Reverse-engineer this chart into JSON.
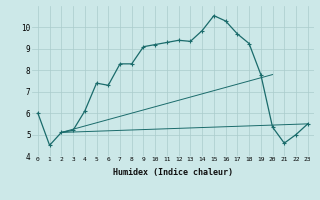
{
  "xlabel": "Humidex (Indice chaleur)",
  "bg_color": "#cce8e8",
  "grid_color": "#aacccc",
  "line_color": "#1a6b6b",
  "xlim": [
    -0.5,
    23.5
  ],
  "ylim": [
    4,
    11
  ],
  "yticks": [
    4,
    5,
    6,
    7,
    8,
    9,
    10
  ],
  "xticks": [
    0,
    1,
    2,
    3,
    4,
    5,
    6,
    7,
    8,
    9,
    10,
    11,
    12,
    13,
    14,
    15,
    16,
    17,
    18,
    19,
    20,
    21,
    22,
    23
  ],
  "main_x": [
    0,
    1,
    2,
    3,
    4,
    5,
    6,
    7,
    8,
    9,
    10,
    11,
    12,
    13,
    14,
    15,
    16,
    17,
    18,
    19,
    20,
    21,
    22,
    23
  ],
  "main_y": [
    6.0,
    4.5,
    5.1,
    5.2,
    6.1,
    7.4,
    7.3,
    8.3,
    8.3,
    9.1,
    9.2,
    9.3,
    9.4,
    9.35,
    9.85,
    10.55,
    10.3,
    9.7,
    9.25,
    7.8,
    5.35,
    4.6,
    5.0,
    5.5
  ],
  "line2_x": [
    2,
    23
  ],
  "line2_y": [
    5.1,
    5.5
  ],
  "line3_x": [
    2,
    20
  ],
  "line3_y": [
    5.1,
    7.8
  ]
}
